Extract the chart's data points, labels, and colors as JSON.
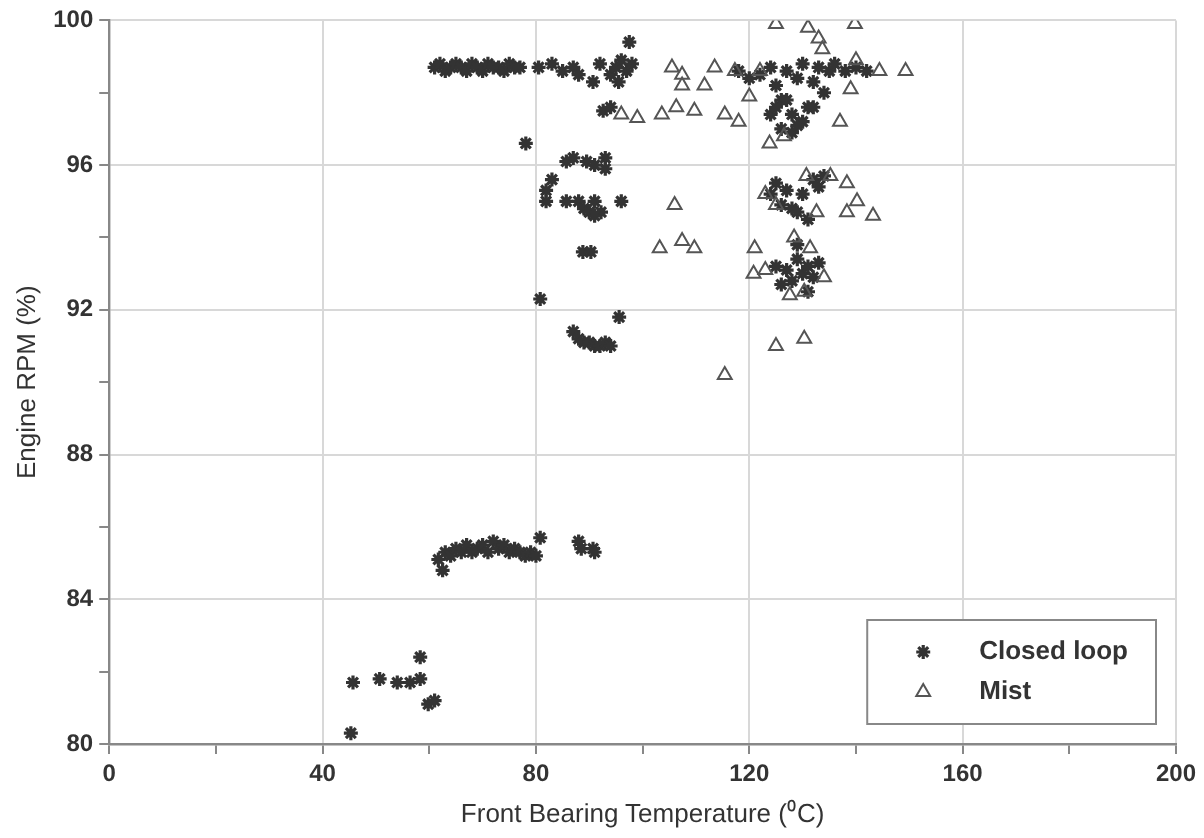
{
  "chart_data": {
    "type": "scatter",
    "xlabel": "Front Bearing Temperature (⁰C)",
    "ylabel": "Engine RPM (%)",
    "xlim": [
      0,
      200
    ],
    "xticks": [
      0,
      {
        "value": 20,
        "label": null
      },
      40,
      {
        "value": 60,
        "label": null
      },
      80,
      {
        "value": 100,
        "label": null
      },
      120,
      {
        "value": 140,
        "label": null
      },
      160,
      {
        "value": 180,
        "label": null
      },
      200
    ],
    "ylim": [
      80,
      100
    ],
    "yticks": [
      80,
      {
        "value": 82,
        "label": null
      },
      84,
      {
        "value": 86,
        "label": null
      },
      88,
      {
        "value": 90,
        "label": null
      },
      92,
      {
        "value": 94,
        "label": null
      },
      96,
      {
        "value": 98,
        "label": null
      },
      100
    ],
    "grid": true,
    "legend": "bottom right",
    "series": [
      {
        "name": "Closed loop",
        "color": "#333333",
        "marker": "cross",
        "x": [
          61,
          62,
          63,
          64,
          65,
          66,
          67,
          68,
          69,
          70,
          71,
          72,
          73,
          74,
          75,
          76,
          77,
          80.5,
          83,
          85,
          87,
          88,
          90.7,
          92,
          94,
          95,
          96,
          97,
          98,
          97.5,
          95.5,
          92.6,
          94,
          122,
          124,
          125,
          126,
          127,
          128,
          129,
          130,
          131,
          132,
          133,
          134,
          135,
          136,
          138,
          140,
          142,
          124,
          126,
          128,
          130,
          127,
          125,
          129,
          132,
          120,
          118,
          124,
          125,
          127,
          128,
          129,
          130,
          131,
          132,
          133,
          134,
          126,
          127,
          128,
          129,
          130,
          131,
          132,
          133,
          126,
          125,
          129,
          131,
          85.7,
          87,
          89.5,
          91,
          93,
          93,
          83,
          81.9,
          81.9,
          85.7,
          88,
          89,
          90,
          91,
          92.2,
          91,
          96,
          88.8,
          90.3,
          80.8,
          95.6,
          87,
          88,
          89,
          90,
          91,
          92,
          93,
          94,
          78.1,
          61.7,
          62.5,
          63,
          64,
          65,
          66,
          67,
          68,
          69,
          70,
          71,
          72,
          73,
          74,
          75,
          76,
          77,
          78,
          79,
          80,
          80.8,
          88,
          88.5,
          90.7,
          91,
          45.7,
          50.7,
          54,
          56.4,
          58.3,
          58.3,
          59.8,
          61,
          45.3
        ],
        "values": [
          98.7,
          98.8,
          98.6,
          98.7,
          98.8,
          98.7,
          98.6,
          98.8,
          98.7,
          98.6,
          98.8,
          98.7,
          98.7,
          98.6,
          98.8,
          98.7,
          98.7,
          98.7,
          98.8,
          98.6,
          98.7,
          98.5,
          98.3,
          98.8,
          98.5,
          98.7,
          98.9,
          98.6,
          98.8,
          99.4,
          98.3,
          97.5,
          97.6,
          98.5,
          98.7,
          98.2,
          97.8,
          98.6,
          97.4,
          98.4,
          98.8,
          97.6,
          98.3,
          98.7,
          98,
          98.6,
          98.8,
          98.6,
          98.7,
          98.6,
          97.4,
          97,
          96.9,
          97.2,
          97.8,
          97.6,
          97.1,
          97.6,
          98.4,
          98.6,
          95.2,
          95.5,
          95.3,
          94.8,
          94.7,
          95.2,
          94.5,
          95.6,
          95.4,
          95.7,
          94.9,
          93.1,
          92.8,
          93.4,
          93,
          93.2,
          92.9,
          93.3,
          92.7,
          93.2,
          93.8,
          92.5,
          96.1,
          96.2,
          96.1,
          96,
          96.2,
          95.9,
          95.6,
          95.3,
          95,
          95,
          95,
          94.8,
          94.7,
          95,
          94.7,
          94.6,
          95,
          93.6,
          93.6,
          92.3,
          91.8,
          91.4,
          91.2,
          91.1,
          91.1,
          91,
          91,
          91.1,
          91,
          96.6,
          85.1,
          84.8,
          85.3,
          85.2,
          85.4,
          85.3,
          85.5,
          85.3,
          85.4,
          85.5,
          85.3,
          85.6,
          85.4,
          85.5,
          85.3,
          85.4,
          85.3,
          85.2,
          85.3,
          85.2,
          85.7,
          85.6,
          85.4,
          85.4,
          85.3,
          81.7,
          81.8,
          81.7,
          81.7,
          81.8,
          82.4,
          81.1,
          81.2,
          80.3
        ]
      },
      {
        "name": "Mist",
        "color": "#555555",
        "marker": "triangle",
        "x": [
          125,
          131,
          139.8,
          133,
          133.7,
          105.5,
          107.4,
          113.5,
          117.3,
          122,
          140,
          144.4,
          149.3,
          111.6,
          107.4,
          96,
          99,
          103.6,
          106.3,
          109.7,
          115.4,
          118,
          123.8,
          126.5,
          137,
          139,
          120,
          106,
          103.2,
          107.4,
          109.7,
          121,
          123,
          130.7,
          135.2,
          138.3,
          140.2,
          143.2,
          138.3,
          132.6,
          125,
          120.8,
          123,
          127.6,
          130.3,
          134,
          128.4,
          131.4,
          125,
          130.3,
          115.4
        ],
        "values": [
          99.9,
          99.8,
          99.9,
          99.5,
          99.2,
          98.7,
          98.5,
          98.7,
          98.6,
          98.6,
          98.9,
          98.6,
          98.6,
          98.2,
          98.2,
          97.4,
          97.3,
          97.4,
          97.6,
          97.5,
          97.4,
          97.2,
          96.6,
          96.8,
          97.2,
          98.1,
          97.9,
          94.9,
          93.7,
          93.9,
          93.7,
          93.7,
          95.2,
          95.7,
          95.7,
          95.5,
          95,
          94.6,
          94.7,
          94.7,
          94.9,
          93,
          93.1,
          92.4,
          92.5,
          92.9,
          94,
          93.7,
          91,
          91.2,
          90.2
        ]
      }
    ]
  }
}
